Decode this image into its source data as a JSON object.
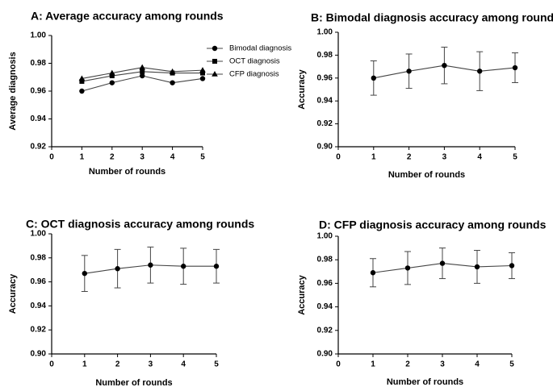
{
  "chart_data": [
    {
      "id": "A",
      "type": "line",
      "title": "A: Average accuracy among rounds",
      "xlabel": "Number of rounds",
      "ylabel": "Average diagnosis",
      "xlim": [
        0,
        5
      ],
      "ylim": [
        0.92,
        1.0
      ],
      "xticks": [
        "0",
        "1",
        "2",
        "3",
        "4",
        "5"
      ],
      "yticks": [
        "0.92",
        "0.94",
        "0.96",
        "0.98",
        "1.00"
      ],
      "legend": "top-right",
      "x": [
        1,
        2,
        3,
        4,
        5
      ],
      "series": [
        {
          "name": "Bimodal diagnosis",
          "marker": "circle",
          "values": [
            0.96,
            0.966,
            0.971,
            0.966,
            0.969
          ]
        },
        {
          "name": "OCT diagnosis",
          "marker": "square",
          "values": [
            0.967,
            0.971,
            0.974,
            0.973,
            0.973
          ]
        },
        {
          "name": "CFP diagnosis",
          "marker": "triangle",
          "values": [
            0.969,
            0.973,
            0.977,
            0.974,
            0.975
          ]
        }
      ]
    },
    {
      "id": "B",
      "type": "line",
      "title": "B: Bimodal diagnosis accuracy among rounds",
      "xlabel": "Number of rounds",
      "ylabel": "Accuracy",
      "xlim": [
        0,
        5
      ],
      "ylim": [
        0.9,
        1.0
      ],
      "xticks": [
        "0",
        "1",
        "2",
        "3",
        "4",
        "5"
      ],
      "yticks": [
        "0.90",
        "0.92",
        "0.94",
        "0.96",
        "0.98",
        "1.00"
      ],
      "x": [
        1,
        2,
        3,
        4,
        5
      ],
      "series": [
        {
          "name": "Bimodal diagnosis",
          "marker": "circle",
          "values": [
            0.96,
            0.966,
            0.971,
            0.966,
            0.969
          ],
          "err": [
            0.015,
            0.015,
            0.016,
            0.017,
            0.013
          ]
        }
      ]
    },
    {
      "id": "C",
      "type": "line",
      "title": "C: OCT diagnosis accuracy among rounds",
      "xlabel": "Number of rounds",
      "ylabel": "Accuracy",
      "xlim": [
        0,
        5
      ],
      "ylim": [
        0.9,
        1.0
      ],
      "xticks": [
        "0",
        "1",
        "2",
        "3",
        "4",
        "5"
      ],
      "yticks": [
        "0.90",
        "0.92",
        "0.94",
        "0.96",
        "0.98",
        "1.00"
      ],
      "x": [
        1,
        2,
        3,
        4,
        5
      ],
      "series": [
        {
          "name": "OCT diagnosis",
          "marker": "circle",
          "values": [
            0.967,
            0.971,
            0.974,
            0.973,
            0.973
          ],
          "err": [
            0.015,
            0.016,
            0.015,
            0.015,
            0.014
          ]
        }
      ]
    },
    {
      "id": "D",
      "type": "line",
      "title": "D: CFP diagnosis accuracy among rounds",
      "xlabel": "Number of rounds",
      "ylabel": "Accuracy",
      "xlim": [
        0,
        5
      ],
      "ylim": [
        0.9,
        1.0
      ],
      "xticks": [
        "0",
        "1",
        "2",
        "3",
        "4",
        "5"
      ],
      "yticks": [
        "0.90",
        "0.92",
        "0.94",
        "0.96",
        "0.98",
        "1.00"
      ],
      "x": [
        1,
        2,
        3,
        4,
        5
      ],
      "series": [
        {
          "name": "CFP diagnosis",
          "marker": "circle",
          "values": [
            0.969,
            0.973,
            0.977,
            0.974,
            0.975
          ],
          "err": [
            0.012,
            0.014,
            0.013,
            0.014,
            0.011
          ]
        }
      ]
    }
  ],
  "colors": {
    "ink": "#000000",
    "line": "#444444",
    "background": "#ffffff"
  }
}
